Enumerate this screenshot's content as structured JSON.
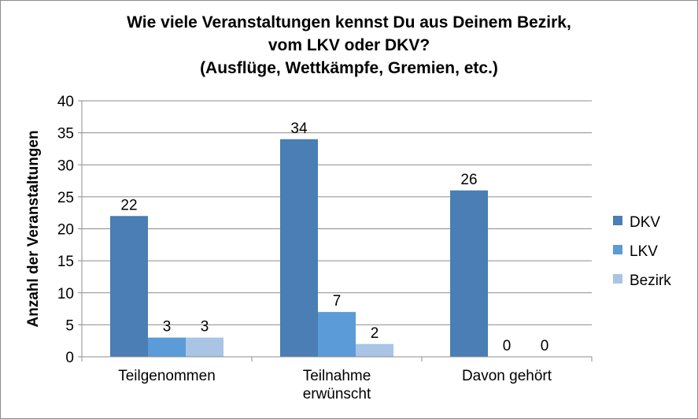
{
  "chart_data": {
    "type": "bar",
    "title_lines": [
      "Wie viele Veranstaltungen kennst Du aus Deinem Bezirk,",
      "vom LKV oder DKV?",
      "(Ausflüge, Wettkämpfe, Gremien, etc.)"
    ],
    "ylabel": "Anzahl der Veranstaltungen",
    "xlabel": "",
    "ylim": [
      0,
      40
    ],
    "yticks": [
      0,
      5,
      10,
      15,
      20,
      25,
      30,
      35,
      40
    ],
    "categories": [
      [
        "Teilgenommen"
      ],
      [
        "Teilnahme",
        "erwünscht"
      ],
      [
        "Davon gehört"
      ]
    ],
    "series": [
      {
        "name": "DKV",
        "values": [
          22,
          34,
          26
        ],
        "color": "#4a7eb4"
      },
      {
        "name": "LKV",
        "values": [
          3,
          7,
          0
        ],
        "color": "#5b9bd8"
      },
      {
        "name": "Bezirk",
        "values": [
          3,
          2,
          0
        ],
        "color": "#a9c4e5"
      }
    ],
    "legend_position": "right",
    "grid": true,
    "data_labels": true
  }
}
